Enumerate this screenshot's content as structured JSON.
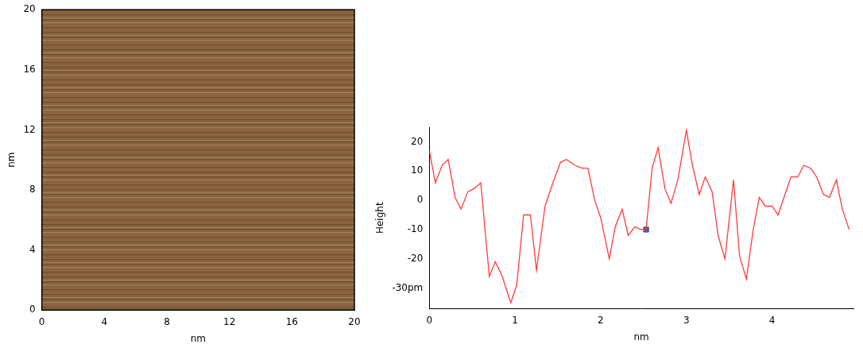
{
  "chart_data": [
    {
      "type": "image",
      "xlabel": "nm",
      "ylabel": "nm",
      "xlim": [
        0,
        20
      ],
      "ylim": [
        0,
        20
      ],
      "xticks": [
        0,
        4,
        8,
        12,
        16,
        20
      ],
      "yticks": [
        0,
        4,
        8,
        12,
        16,
        20
      ],
      "color": "#8a6440",
      "grid": false
    },
    {
      "type": "line",
      "xlabel": "nm",
      "ylabel": "Height",
      "x": [
        0,
        0.07,
        0.15,
        0.22,
        0.3,
        0.37,
        0.45,
        0.52,
        0.6,
        0.7,
        0.77,
        0.85,
        0.95,
        1.02,
        1.1,
        1.18,
        1.25,
        1.35,
        1.43,
        1.53,
        1.6,
        1.7,
        1.78,
        1.85,
        1.93,
        2.0,
        2.1,
        2.17,
        2.25,
        2.32,
        2.4,
        2.47,
        2.53,
        2.6,
        2.67,
        2.75,
        2.82,
        2.9,
        3.0,
        3.07,
        3.15,
        3.22,
        3.3,
        3.37,
        3.45,
        3.55,
        3.62,
        3.7,
        3.78,
        3.85,
        3.92,
        4.0,
        4.07,
        4.15,
        4.22,
        4.3,
        4.37,
        4.45,
        4.52,
        4.6,
        4.67,
        4.75,
        4.82,
        4.9
      ],
      "values": [
        17,
        6,
        12,
        14,
        1,
        -3,
        3,
        4,
        6,
        -26,
        -21,
        -26,
        -35,
        -29,
        -5,
        -5,
        -24,
        -2,
        5,
        13,
        14,
        12,
        11,
        11,
        0,
        -6,
        -20,
        -9,
        -3,
        -12,
        -9,
        -10,
        -10,
        11,
        18,
        4,
        -1,
        7,
        24,
        12,
        2,
        8,
        3,
        -12,
        -20,
        7,
        -19,
        -27,
        -10,
        1,
        -2,
        -2,
        -5,
        2,
        8,
        8,
        12,
        11,
        8,
        2,
        1,
        7,
        -3,
        -10
      ],
      "color": "#ff3b3b",
      "marker": "none",
      "line_style": "solid",
      "xlim": [
        0,
        4.95
      ],
      "ylim": [
        -37,
        25
      ],
      "xticks": [
        0,
        1,
        2,
        3,
        4
      ],
      "yticks": [
        {
          "value": -30,
          "label": "-30pm"
        },
        -20,
        -10,
        0,
        10,
        20
      ],
      "grid": false,
      "marker_point": {
        "x": 2.53,
        "y": -10,
        "color": "#3f5fa8"
      }
    }
  ]
}
